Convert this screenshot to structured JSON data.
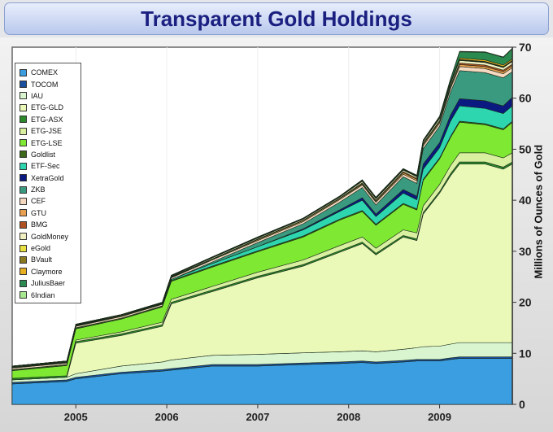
{
  "title": "Transparent Gold Holdings",
  "chart_data": {
    "type": "area",
    "stacked": true,
    "title": "Transparent Gold Holdings",
    "xlabel": "",
    "ylabel": "Millions of Ounces of Gold",
    "ylim": [
      0,
      70
    ],
    "xlim": [
      2004.3,
      2009.8
    ],
    "yticks": [
      "0",
      "10",
      "20",
      "30",
      "40",
      "50",
      "60",
      "70"
    ],
    "xticks": [
      "2005",
      "2006",
      "2007",
      "2008",
      "2009"
    ],
    "legend_position": "top-left",
    "x": [
      2004.3,
      2004.9,
      2005.0,
      2005.5,
      2005.95,
      2006.05,
      2006.5,
      2007.0,
      2007.5,
      2007.9,
      2008.15,
      2008.3,
      2008.6,
      2008.75,
      2008.82,
      2009.0,
      2009.12,
      2009.22,
      2009.5,
      2009.7,
      2009.8
    ],
    "series": [
      {
        "name": "COMEX",
        "color": "#3a9ee0",
        "values": [
          4,
          4.5,
          5,
          6,
          6.5,
          6.7,
          7.5,
          7.5,
          7.8,
          8,
          8.2,
          8,
          8.3,
          8.5,
          8.5,
          8.5,
          8.8,
          9,
          9,
          9,
          9
        ]
      },
      {
        "name": "TOCOM",
        "color": "#1a4fa0",
        "values": [
          0.3,
          0.3,
          0.3,
          0.3,
          0.3,
          0.3,
          0.3,
          0.3,
          0.3,
          0.3,
          0.3,
          0.3,
          0.3,
          0.3,
          0.3,
          0.3,
          0.3,
          0.3,
          0.3,
          0.3,
          0.3
        ]
      },
      {
        "name": "IAU",
        "color": "#d8f5d0",
        "values": [
          0.5,
          0.5,
          0.7,
          1.2,
          1.5,
          1.7,
          1.8,
          2,
          2,
          2,
          2,
          2,
          2.2,
          2.3,
          2.5,
          2.6,
          2.7,
          2.8,
          2.8,
          2.8,
          2.8
        ]
      },
      {
        "name": "ETG-GLD",
        "color": "#eaf8b8",
        "values": [
          0,
          0,
          6,
          6,
          7,
          11,
          12.5,
          15,
          17,
          19.5,
          21,
          19,
          22,
          21,
          26,
          30,
          33,
          35,
          35,
          34,
          35
        ]
      },
      {
        "name": "ETG-ASX",
        "color": "#2a8a2a",
        "values": [
          0.3,
          0.3,
          0.3,
          0.3,
          0.3,
          0.3,
          0.3,
          0.3,
          0.3,
          0.3,
          0.3,
          0.3,
          0.3,
          0.3,
          0.3,
          0.3,
          0.4,
          0.4,
          0.4,
          0.4,
          0.4
        ]
      },
      {
        "name": "ETG-JSE",
        "color": "#d8f0a0",
        "values": [
          0,
          0,
          0.3,
          0.4,
          0.5,
          0.6,
          0.7,
          0.8,
          0.9,
          1,
          1,
          1,
          1.1,
          1.2,
          1.3,
          1.4,
          1.6,
          1.8,
          1.8,
          1.8,
          1.8
        ]
      },
      {
        "name": "ETG-LSE",
        "color": "#7ee832",
        "values": [
          1.5,
          2,
          2.2,
          2.5,
          3,
          3.5,
          3.8,
          4,
          4.5,
          5,
          5,
          4.5,
          5,
          4.5,
          5,
          5,
          5.5,
          6,
          5.5,
          5.5,
          6
        ]
      },
      {
        "name": "Goldlist",
        "color": "#3c6a1a",
        "values": [
          0.2,
          0.2,
          0.2,
          0.2,
          0.2,
          0.2,
          0.2,
          0.2,
          0.2,
          0.2,
          0.2,
          0.2,
          0.2,
          0.2,
          0.2,
          0.2,
          0.2,
          0.2,
          0.2,
          0.2,
          0.2
        ]
      },
      {
        "name": "ETF-Sec",
        "color": "#2ed6b0",
        "values": [
          0,
          0,
          0,
          0,
          0,
          0.2,
          0.5,
          0.8,
          1.2,
          1.5,
          2,
          1.5,
          2,
          1.8,
          2,
          2,
          3,
          3,
          3,
          3,
          3
        ]
      },
      {
        "name": "XetraGold",
        "color": "#0a1a80",
        "values": [
          0,
          0,
          0,
          0,
          0,
          0,
          0,
          0,
          0.2,
          0.3,
          0.5,
          0.5,
          0.7,
          0.7,
          1,
          1,
          1.2,
          1.4,
          1.5,
          1.5,
          1.7
        ]
      },
      {
        "name": "ZKB",
        "color": "#3a9a80",
        "values": [
          0,
          0,
          0,
          0,
          0,
          0,
          0.3,
          0.8,
          1,
          1.5,
          2,
          1.8,
          2.5,
          2.5,
          3,
          3.2,
          4.5,
          5.5,
          5.5,
          5.5,
          5
        ]
      },
      {
        "name": "CEF",
        "color": "#f5d8c0",
        "values": [
          0.3,
          0.3,
          0.3,
          0.3,
          0.3,
          0.3,
          0.4,
          0.4,
          0.4,
          0.5,
          0.5,
          0.5,
          0.5,
          0.5,
          0.6,
          0.6,
          0.7,
          0.8,
          0.8,
          0.8,
          0.8
        ]
      },
      {
        "name": "GTU",
        "color": "#e8a050",
        "values": [
          0.1,
          0.1,
          0.1,
          0.1,
          0.1,
          0.1,
          0.1,
          0.2,
          0.2,
          0.2,
          0.2,
          0.2,
          0.3,
          0.3,
          0.3,
          0.3,
          0.3,
          0.4,
          0.4,
          0.4,
          0.4
        ]
      },
      {
        "name": "BMG",
        "color": "#b05020",
        "values": [
          0.1,
          0.1,
          0.1,
          0.1,
          0.1,
          0.1,
          0.1,
          0.1,
          0.1,
          0.1,
          0.2,
          0.2,
          0.2,
          0.2,
          0.2,
          0.2,
          0.2,
          0.3,
          0.3,
          0.3,
          0.3
        ]
      },
      {
        "name": "GoldMoney",
        "color": "#f0f0c0",
        "values": [
          0.1,
          0.1,
          0.1,
          0.1,
          0.1,
          0.1,
          0.2,
          0.2,
          0.2,
          0.2,
          0.3,
          0.3,
          0.3,
          0.3,
          0.3,
          0.4,
          0.4,
          0.5,
          0.5,
          0.5,
          0.5
        ]
      },
      {
        "name": "eGold",
        "color": "#e8e040",
        "values": [
          0.1,
          0.1,
          0.1,
          0.1,
          0.1,
          0.1,
          0.1,
          0.1,
          0.1,
          0.1,
          0.1,
          0.1,
          0.1,
          0.1,
          0.1,
          0.1,
          0.1,
          0.1,
          0.1,
          0.1,
          0.1
        ]
      },
      {
        "name": "BVault",
        "color": "#8a7a20",
        "values": [
          0,
          0,
          0,
          0,
          0,
          0.1,
          0.1,
          0.1,
          0.1,
          0.1,
          0.1,
          0.1,
          0.1,
          0.1,
          0.1,
          0.1,
          0.1,
          0.1,
          0.1,
          0.1,
          0.1
        ]
      },
      {
        "name": "Claymore",
        "color": "#e8b020",
        "values": [
          0,
          0,
          0,
          0,
          0,
          0,
          0,
          0,
          0,
          0,
          0.1,
          0.1,
          0.1,
          0.1,
          0.1,
          0.2,
          0.2,
          0.3,
          0.3,
          0.3,
          0.3
        ]
      },
      {
        "name": "JuliusBaer",
        "color": "#2a8a50",
        "values": [
          0,
          0,
          0,
          0,
          0,
          0,
          0,
          0,
          0,
          0,
          0,
          0,
          0,
          0,
          0,
          0,
          0.5,
          1.2,
          1.5,
          1.5,
          2
        ]
      },
      {
        "name": "6Indian",
        "color": "#a8e890",
        "values": [
          0,
          0,
          0,
          0,
          0,
          0,
          0,
          0,
          0,
          0,
          0,
          0,
          0,
          0,
          0,
          0.1,
          0.1,
          0.1,
          0.1,
          0.1,
          0.1
        ]
      }
    ]
  }
}
